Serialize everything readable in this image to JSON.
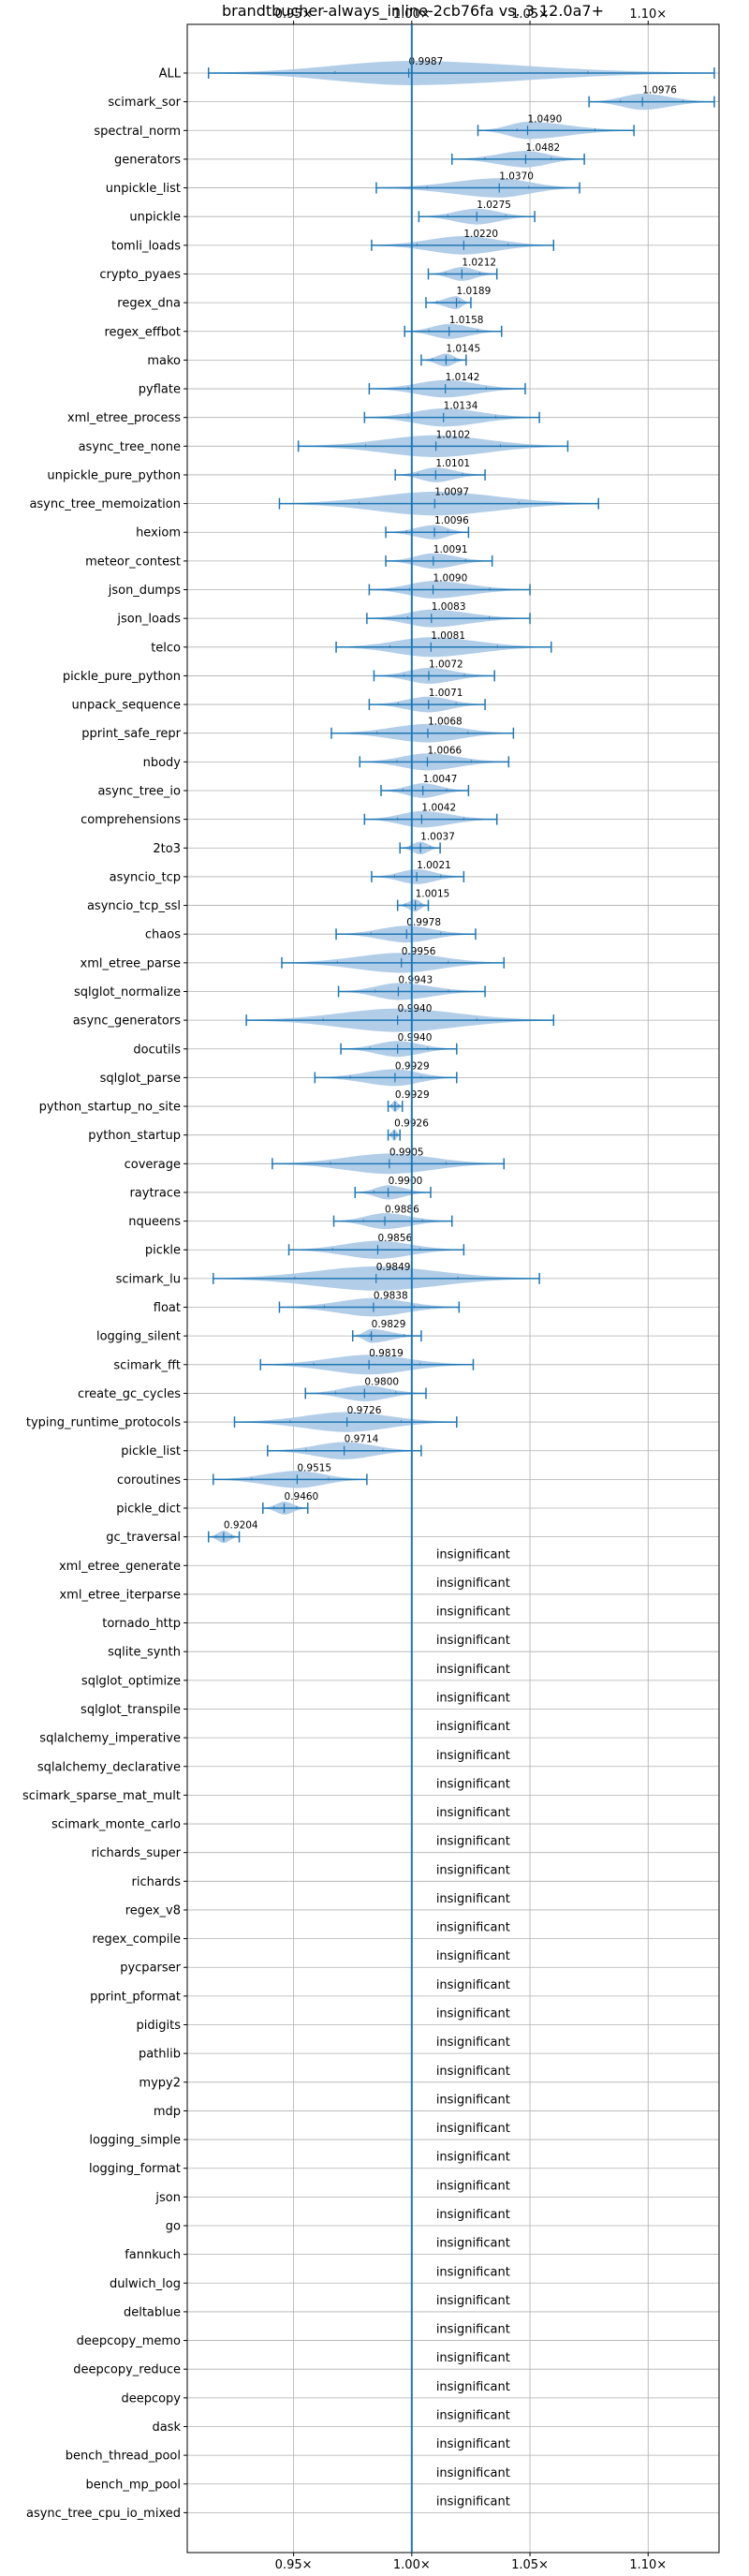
{
  "chart_data": {
    "type": "violin",
    "title": "brandtbucher-always_inline-2cb76fa vs. 3.12.0a7+",
    "x_tick_labels": [
      "0.95×",
      "1.00×",
      "1.05×",
      "1.10×"
    ],
    "x_ticks": [
      0.95,
      1.0,
      1.05,
      1.1
    ],
    "xlim": [
      0.905,
      1.13
    ],
    "reference_line": 1.0,
    "grid": true,
    "colors": {
      "violin": "#aac8e6",
      "line": "#1f77b4"
    },
    "significant": [
      {
        "name": "ALL",
        "mean": 0.9987,
        "min": 0.914,
        "max": 1.128,
        "label": "0.9987"
      },
      {
        "name": "scimark_sor",
        "mean": 1.0976,
        "min": 1.075,
        "max": 1.128,
        "label": "1.0976"
      },
      {
        "name": "spectral_norm",
        "mean": 1.049,
        "min": 1.028,
        "max": 1.094,
        "label": "1.0490"
      },
      {
        "name": "generators",
        "mean": 1.0482,
        "min": 1.017,
        "max": 1.073,
        "label": "1.0482"
      },
      {
        "name": "unpickle_list",
        "mean": 1.037,
        "min": 0.985,
        "max": 1.071,
        "label": "1.0370"
      },
      {
        "name": "unpickle",
        "mean": 1.0275,
        "min": 1.003,
        "max": 1.052,
        "label": "1.0275"
      },
      {
        "name": "tomli_loads",
        "mean": 1.022,
        "min": 0.983,
        "max": 1.06,
        "label": "1.0220"
      },
      {
        "name": "crypto_pyaes",
        "mean": 1.0212,
        "min": 1.007,
        "max": 1.036,
        "label": "1.0212"
      },
      {
        "name": "regex_dna",
        "mean": 1.0189,
        "min": 1.006,
        "max": 1.025,
        "label": "1.0189"
      },
      {
        "name": "regex_effbot",
        "mean": 1.0158,
        "min": 0.997,
        "max": 1.038,
        "label": "1.0158"
      },
      {
        "name": "mako",
        "mean": 1.0145,
        "min": 1.004,
        "max": 1.023,
        "label": "1.0145"
      },
      {
        "name": "pyflate",
        "mean": 1.0142,
        "min": 0.982,
        "max": 1.048,
        "label": "1.0142"
      },
      {
        "name": "xml_etree_process",
        "mean": 1.0134,
        "min": 0.98,
        "max": 1.054,
        "label": "1.0134"
      },
      {
        "name": "async_tree_none",
        "mean": 1.0102,
        "min": 0.952,
        "max": 1.066,
        "label": "1.0102"
      },
      {
        "name": "unpickle_pure_python",
        "mean": 1.0101,
        "min": 0.993,
        "max": 1.031,
        "label": "1.0101"
      },
      {
        "name": "async_tree_memoization",
        "mean": 1.0097,
        "min": 0.944,
        "max": 1.079,
        "label": "1.0097"
      },
      {
        "name": "hexiom",
        "mean": 1.0096,
        "min": 0.989,
        "max": 1.024,
        "label": "1.0096"
      },
      {
        "name": "meteor_contest",
        "mean": 1.0091,
        "min": 0.989,
        "max": 1.034,
        "label": "1.0091"
      },
      {
        "name": "json_dumps",
        "mean": 1.009,
        "min": 0.982,
        "max": 1.05,
        "label": "1.0090"
      },
      {
        "name": "json_loads",
        "mean": 1.0083,
        "min": 0.981,
        "max": 1.05,
        "label": "1.0083"
      },
      {
        "name": "telco",
        "mean": 1.0081,
        "min": 0.968,
        "max": 1.059,
        "label": "1.0081"
      },
      {
        "name": "pickle_pure_python",
        "mean": 1.0072,
        "min": 0.984,
        "max": 1.035,
        "label": "1.0072"
      },
      {
        "name": "unpack_sequence",
        "mean": 1.0071,
        "min": 0.982,
        "max": 1.031,
        "label": "1.0071"
      },
      {
        "name": "pprint_safe_repr",
        "mean": 1.0068,
        "min": 0.966,
        "max": 1.043,
        "label": "1.0068"
      },
      {
        "name": "nbody",
        "mean": 1.0066,
        "min": 0.978,
        "max": 1.041,
        "label": "1.0066"
      },
      {
        "name": "async_tree_io",
        "mean": 1.0047,
        "min": 0.987,
        "max": 1.024,
        "label": "1.0047"
      },
      {
        "name": "comprehensions",
        "mean": 1.0042,
        "min": 0.98,
        "max": 1.036,
        "label": "1.0042"
      },
      {
        "name": "2to3",
        "mean": 1.0037,
        "min": 0.995,
        "max": 1.012,
        "label": "1.0037"
      },
      {
        "name": "asyncio_tcp",
        "mean": 1.0021,
        "min": 0.983,
        "max": 1.022,
        "label": "1.0021"
      },
      {
        "name": "asyncio_tcp_ssl",
        "mean": 1.0015,
        "min": 0.994,
        "max": 1.007,
        "label": "1.0015"
      },
      {
        "name": "chaos",
        "mean": 0.9978,
        "min": 0.968,
        "max": 1.027,
        "label": "0.9978"
      },
      {
        "name": "xml_etree_parse",
        "mean": 0.9956,
        "min": 0.945,
        "max": 1.039,
        "label": "0.9956"
      },
      {
        "name": "sqlglot_normalize",
        "mean": 0.9943,
        "min": 0.969,
        "max": 1.031,
        "label": "0.9943"
      },
      {
        "name": "async_generators",
        "mean": 0.994,
        "min": 0.93,
        "max": 1.06,
        "label": "0.9940"
      },
      {
        "name": "docutils",
        "mean": 0.994,
        "min": 0.97,
        "max": 1.019,
        "label": "0.9940"
      },
      {
        "name": "sqlglot_parse",
        "mean": 0.9929,
        "min": 0.959,
        "max": 1.019,
        "label": "0.9929"
      },
      {
        "name": "python_startup_no_site",
        "mean": 0.9929,
        "min": 0.99,
        "max": 0.996,
        "label": "0.9929"
      },
      {
        "name": "python_startup",
        "mean": 0.9926,
        "min": 0.99,
        "max": 0.995,
        "label": "0.9926"
      },
      {
        "name": "coverage",
        "mean": 0.9905,
        "min": 0.941,
        "max": 1.039,
        "label": "0.9905"
      },
      {
        "name": "raytrace",
        "mean": 0.99,
        "min": 0.976,
        "max": 1.008,
        "label": "0.9900"
      },
      {
        "name": "nqueens",
        "mean": 0.9886,
        "min": 0.967,
        "max": 1.017,
        "label": "0.9886"
      },
      {
        "name": "pickle",
        "mean": 0.9856,
        "min": 0.948,
        "max": 1.022,
        "label": "0.9856"
      },
      {
        "name": "scimark_lu",
        "mean": 0.9849,
        "min": 0.916,
        "max": 1.054,
        "label": "0.9849"
      },
      {
        "name": "float",
        "mean": 0.9838,
        "min": 0.944,
        "max": 1.02,
        "label": "0.9838"
      },
      {
        "name": "logging_silent",
        "mean": 0.9829,
        "min": 0.975,
        "max": 1.004,
        "label": "0.9829"
      },
      {
        "name": "scimark_fft",
        "mean": 0.9819,
        "min": 0.936,
        "max": 1.026,
        "label": "0.9819"
      },
      {
        "name": "create_gc_cycles",
        "mean": 0.98,
        "min": 0.955,
        "max": 1.006,
        "label": "0.9800"
      },
      {
        "name": "typing_runtime_protocols",
        "mean": 0.9726,
        "min": 0.925,
        "max": 1.019,
        "label": "0.9726"
      },
      {
        "name": "pickle_list",
        "mean": 0.9714,
        "min": 0.939,
        "max": 1.004,
        "label": "0.9714"
      },
      {
        "name": "coroutines",
        "mean": 0.9515,
        "min": 0.916,
        "max": 0.981,
        "label": "0.9515"
      },
      {
        "name": "pickle_dict",
        "mean": 0.946,
        "min": 0.937,
        "max": 0.956,
        "label": "0.9460"
      },
      {
        "name": "gc_traversal",
        "mean": 0.9204,
        "min": 0.914,
        "max": 0.927,
        "label": "0.9204"
      }
    ],
    "insignificant_label": "insignificant",
    "insignificant": [
      "xml_etree_generate",
      "xml_etree_iterparse",
      "tornado_http",
      "sqlite_synth",
      "sqlglot_optimize",
      "sqlglot_transpile",
      "sqlalchemy_imperative",
      "sqlalchemy_declarative",
      "scimark_sparse_mat_mult",
      "scimark_monte_carlo",
      "richards_super",
      "richards",
      "regex_v8",
      "regex_compile",
      "pycparser",
      "pprint_pformat",
      "pidigits",
      "pathlib",
      "mypy2",
      "mdp",
      "logging_simple",
      "logging_format",
      "json",
      "go",
      "fannkuch",
      "dulwich_log",
      "deltablue",
      "deepcopy_memo",
      "deepcopy_reduce",
      "deepcopy",
      "dask",
      "bench_thread_pool",
      "bench_mp_pool",
      "async_tree_cpu_io_mixed"
    ]
  }
}
